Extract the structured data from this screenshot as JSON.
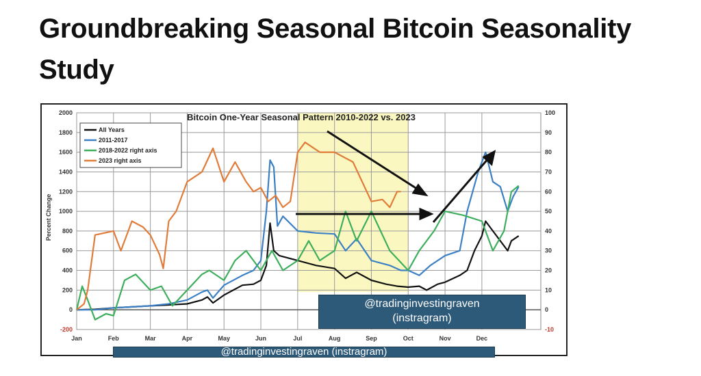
{
  "page": {
    "title": "Groundbreaking Seasonal Bitcoin Seasonality Study"
  },
  "watermarks": [
    "@tradinginvestingraven",
    "(instragram)",
    "@tradinginvestingraven (instragram)"
  ],
  "chart_data": {
    "type": "line",
    "title": "Bitcoin One-Year Seasonal Pattern 2010-2022 vs. 2023",
    "ylabel": "Percent Change",
    "ylim": [
      -200,
      2000
    ],
    "y2lim": [
      -10,
      100
    ],
    "yticks": [
      "2000",
      "1800",
      "1600",
      "1400",
      "1200",
      "1000",
      "800",
      "600",
      "400",
      "200",
      "0",
      "-200"
    ],
    "y2ticks": [
      "100",
      "90",
      "80",
      "70",
      "60",
      "50",
      "40",
      "30",
      "20",
      "10",
      "0",
      "-10"
    ],
    "xticks": [
      "Jan",
      "Feb",
      "Mar",
      "Apr",
      "May",
      "Jun",
      "Jul",
      "Aug",
      "Sep",
      "Oct",
      "Nov",
      "Dec"
    ],
    "legend_position": "top-left",
    "highlight": {
      "from_month": 6,
      "to_month": 9,
      "color": "#fbf7c0"
    },
    "series": [
      {
        "name": "All Years",
        "axis": "left",
        "color": "#111111",
        "points": [
          [
            0,
            0
          ],
          [
            0.5,
            5
          ],
          [
            1,
            20
          ],
          [
            1.5,
            30
          ],
          [
            2,
            40
          ],
          [
            2.5,
            50
          ],
          [
            3,
            60
          ],
          [
            3.4,
            100
          ],
          [
            3.55,
            130
          ],
          [
            3.7,
            70
          ],
          [
            4,
            150
          ],
          [
            4.5,
            250
          ],
          [
            4.8,
            260
          ],
          [
            5,
            300
          ],
          [
            5.15,
            450
          ],
          [
            5.25,
            880
          ],
          [
            5.35,
            600
          ],
          [
            5.5,
            550
          ],
          [
            6,
            500
          ],
          [
            6.5,
            450
          ],
          [
            7,
            420
          ],
          [
            7.3,
            320
          ],
          [
            7.6,
            380
          ],
          [
            8,
            300
          ],
          [
            8.4,
            260
          ],
          [
            8.7,
            240
          ],
          [
            9,
            230
          ],
          [
            9.3,
            240
          ],
          [
            9.5,
            200
          ],
          [
            9.8,
            260
          ],
          [
            10,
            280
          ],
          [
            10.4,
            350
          ],
          [
            10.6,
            400
          ],
          [
            10.8,
            600
          ],
          [
            11,
            750
          ],
          [
            11.1,
            900
          ],
          [
            11.3,
            800
          ],
          [
            11.5,
            700
          ],
          [
            11.7,
            600
          ],
          [
            11.8,
            700
          ],
          [
            12,
            750
          ]
        ]
      },
      {
        "name": "2011-2017",
        "axis": "left",
        "color": "#3b7fc4",
        "points": [
          [
            0,
            0
          ],
          [
            0.5,
            0
          ],
          [
            1,
            20
          ],
          [
            1.5,
            30
          ],
          [
            2,
            40
          ],
          [
            2.5,
            60
          ],
          [
            3,
            100
          ],
          [
            3.4,
            180
          ],
          [
            3.55,
            200
          ],
          [
            3.7,
            120
          ],
          [
            4,
            250
          ],
          [
            4.5,
            350
          ],
          [
            4.8,
            400
          ],
          [
            5,
            500
          ],
          [
            5.15,
            1000
          ],
          [
            5.25,
            1520
          ],
          [
            5.35,
            1450
          ],
          [
            5.45,
            850
          ],
          [
            5.6,
            950
          ],
          [
            6,
            800
          ],
          [
            6.5,
            780
          ],
          [
            7,
            770
          ],
          [
            7.3,
            600
          ],
          [
            7.6,
            720
          ],
          [
            8,
            500
          ],
          [
            8.5,
            450
          ],
          [
            8.8,
            400
          ],
          [
            9,
            400
          ],
          [
            9.3,
            350
          ],
          [
            9.6,
            450
          ],
          [
            10,
            550
          ],
          [
            10.4,
            600
          ],
          [
            10.6,
            1000
          ],
          [
            10.9,
            1400
          ],
          [
            11.1,
            1600
          ],
          [
            11.3,
            1300
          ],
          [
            11.5,
            1250
          ],
          [
            11.7,
            1000
          ],
          [
            11.85,
            1150
          ],
          [
            12,
            1250
          ]
        ]
      },
      {
        "name": "2018-2022 right axis",
        "axis": "right",
        "color": "#3cae5c",
        "points": [
          [
            0,
            0
          ],
          [
            0.15,
            12
          ],
          [
            0.3,
            5
          ],
          [
            0.5,
            -5
          ],
          [
            0.8,
            -2
          ],
          [
            1,
            -3
          ],
          [
            1.3,
            15
          ],
          [
            1.6,
            18
          ],
          [
            2,
            10
          ],
          [
            2.3,
            12
          ],
          [
            2.6,
            2
          ],
          [
            3,
            10
          ],
          [
            3.4,
            18
          ],
          [
            3.6,
            20
          ],
          [
            4,
            15
          ],
          [
            4.3,
            25
          ],
          [
            4.6,
            30
          ],
          [
            5,
            20
          ],
          [
            5.3,
            30
          ],
          [
            5.6,
            20
          ],
          [
            6,
            25
          ],
          [
            6.3,
            35
          ],
          [
            6.6,
            25
          ],
          [
            7,
            30
          ],
          [
            7.3,
            50
          ],
          [
            7.6,
            35
          ],
          [
            8,
            50
          ],
          [
            8.5,
            30
          ],
          [
            9,
            20
          ],
          [
            9.3,
            30
          ],
          [
            9.7,
            40
          ],
          [
            10,
            50
          ],
          [
            10.5,
            48
          ],
          [
            11,
            45
          ],
          [
            11.3,
            30
          ],
          [
            11.6,
            40
          ],
          [
            11.8,
            60
          ],
          [
            12,
            63
          ]
        ]
      },
      {
        "name": "2023 right axis",
        "axis": "right",
        "color": "#e07b39",
        "points": [
          [
            0,
            0
          ],
          [
            0.2,
            3
          ],
          [
            0.3,
            10
          ],
          [
            0.5,
            38
          ],
          [
            1,
            40
          ],
          [
            1.2,
            30
          ],
          [
            1.5,
            45
          ],
          [
            1.8,
            42
          ],
          [
            2,
            38
          ],
          [
            2.25,
            28
          ],
          [
            2.35,
            21
          ],
          [
            2.5,
            45
          ],
          [
            2.7,
            50
          ],
          [
            3,
            65
          ],
          [
            3.4,
            70
          ],
          [
            3.7,
            82
          ],
          [
            4,
            65
          ],
          [
            4.3,
            75
          ],
          [
            4.6,
            65
          ],
          [
            4.8,
            60
          ],
          [
            5,
            62
          ],
          [
            5.2,
            55
          ],
          [
            5.4,
            58
          ],
          [
            5.6,
            52
          ],
          [
            5.8,
            55
          ],
          [
            6,
            80
          ],
          [
            6.2,
            85
          ],
          [
            6.6,
            80
          ],
          [
            7,
            80
          ],
          [
            7.5,
            75
          ],
          [
            8,
            55
          ],
          [
            8.3,
            56
          ],
          [
            8.5,
            52
          ],
          [
            8.7,
            60
          ],
          [
            8.8,
            60
          ]
        ]
      }
    ]
  }
}
